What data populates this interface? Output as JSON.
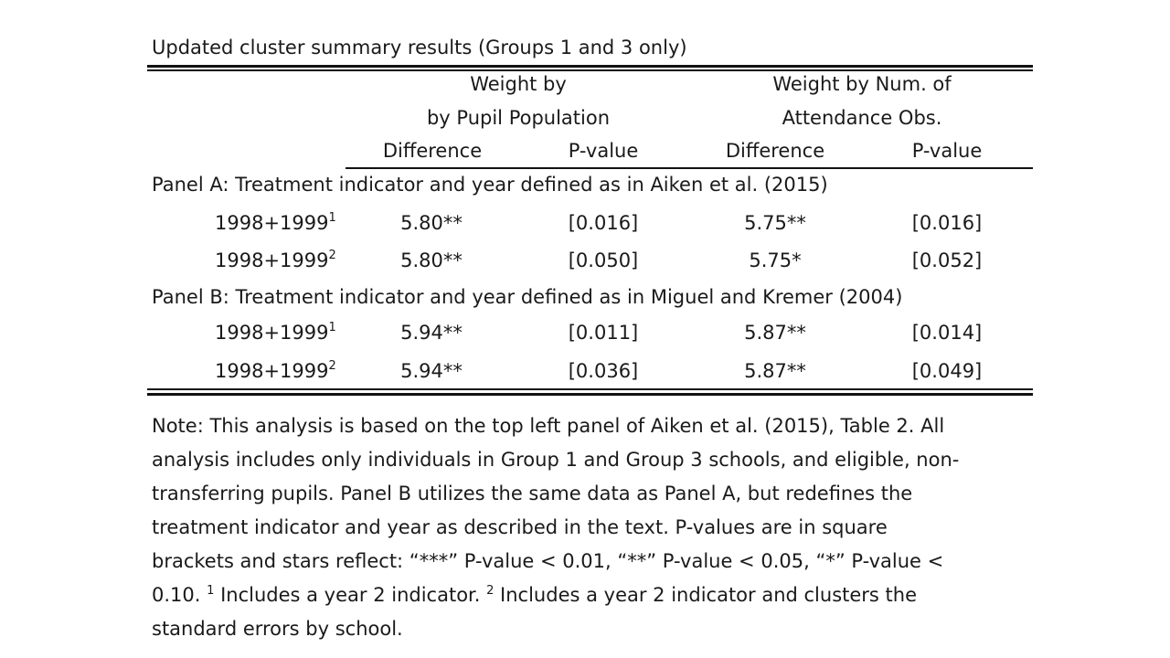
{
  "caption": "Updated cluster summary results (Groups 1 and 3 only)",
  "headers": {
    "group1_line1": "Weight by",
    "group1_line2": "by Pupil Population",
    "group2_line1": "Weight by Num. of",
    "group2_line2": "Attendance Obs.",
    "col1": "Difference",
    "col2": "P-value",
    "col3": "Difference",
    "col4": "P-value"
  },
  "panel_a": {
    "label": "Panel A: Treatment indicator and year defined as in Aiken et al. (2015)",
    "rows": [
      {
        "year": "1998+1999",
        "mark": "1",
        "diff1": "5.80**",
        "p1": "[0.016]",
        "diff2": "5.75**",
        "p2": "[0.016]"
      },
      {
        "year": "1998+1999",
        "mark": "2",
        "diff1": "5.80**",
        "p1": "[0.050]",
        "diff2": "5.75*",
        "p2": "[0.052]"
      }
    ]
  },
  "panel_b": {
    "label": "Panel B: Treatment indicator and year defined as in Miguel and Kremer (2004)",
    "rows": [
      {
        "year": "1998+1999",
        "mark": "1",
        "diff1": "5.94**",
        "p1": "[0.011]",
        "diff2": "5.87**",
        "p2": "[0.014]"
      },
      {
        "year": "1998+1999",
        "mark": "2",
        "diff1": "5.94**",
        "p1": "[0.036]",
        "diff2": "5.87**",
        "p2": "[0.049]"
      }
    ]
  },
  "note": {
    "line1": "Note: This analysis is based on the top left panel of Aiken et al. (2015), Table 2. All",
    "line2": "analysis includes only individuals in Group 1 and Group 3 schools, and eligible, non-",
    "line3": "transferring pupils. Panel B utilizes the same data as Panel A, but redefines the",
    "line4": "treatment indicator and year as described in the text. P-values are in square",
    "line5": "brackets and stars reflect: “***” P-value < 0.01, “**” P-value < 0.05, “*” P-value <",
    "line6_a": "0.10. ",
    "mark1": "1",
    "line6_b": " Includes a year 2 indicator. ",
    "mark2": "2",
    "line6_c": " Includes a year 2 indicator and clusters the",
    "line7": "standard errors by school."
  }
}
